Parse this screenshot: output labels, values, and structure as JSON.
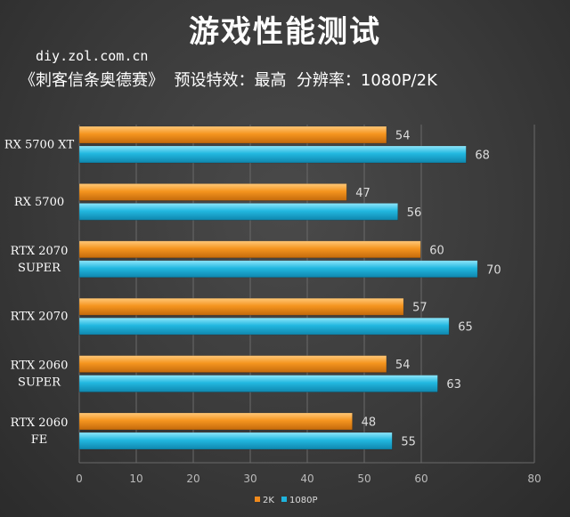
{
  "header": {
    "title": "游戏性能测试",
    "source": "diy.zol.com.cn",
    "subtitle": "《刺客信条奥德赛》  预设特效：最高  分辨率：1080P/2K"
  },
  "colors": {
    "orange": "#f08a1c",
    "cyan": "#1fb3dc",
    "grid": "#6a6a6a"
  },
  "chart_data": {
    "type": "bar",
    "orientation": "horizontal",
    "categories": [
      [
        "RX 5700 XT"
      ],
      [
        "RX 5700"
      ],
      [
        "RTX 2070",
        "SUPER"
      ],
      [
        "RTX 2070"
      ],
      [
        "RTX 2060",
        "SUPER"
      ],
      [
        "RTX 2060",
        "FE"
      ]
    ],
    "series": [
      {
        "name": "2K",
        "values": [
          54,
          47,
          60,
          57,
          54,
          48
        ],
        "color": "#f08a1c"
      },
      {
        "name": "1080P",
        "values": [
          68,
          56,
          70,
          65,
          63,
          55
        ],
        "color": "#1fb3dc"
      }
    ],
    "xlim": [
      0,
      80
    ],
    "xticks": [
      "0",
      "10",
      "20",
      "30",
      "40",
      "50",
      "60",
      "80"
    ],
    "grid": true,
    "legend": "bottom-center"
  }
}
